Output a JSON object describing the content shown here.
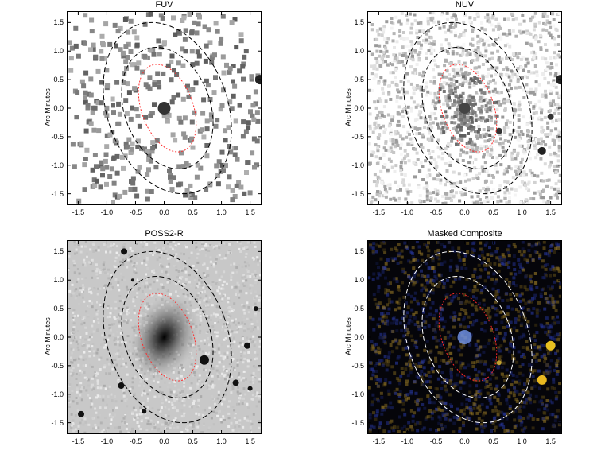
{
  "figure": {
    "axis_label": "Arc Minutes",
    "x_ticks": [
      "-1.5",
      "-1.0",
      "-0.5",
      "0.0",
      "0.5",
      "1.0",
      "1.5"
    ],
    "y_ticks": [
      "1.5",
      "1.0",
      "0.5",
      "0.0",
      "-0.5",
      "-1.0",
      "-1.5"
    ],
    "axis_range": [
      -1.7,
      1.7
    ],
    "overlay": {
      "inner_ellipse_color": "#ff2a2a",
      "outer_ellipse_color_light": "#000000",
      "outer_ellipse_color_dark": "#ffffff",
      "style": "dashed"
    }
  },
  "panels": [
    {
      "id": "fuv",
      "title": "FUV",
      "style": "sparse-mono"
    },
    {
      "id": "nuv",
      "title": "NUV",
      "style": "dense-mono"
    },
    {
      "id": "poss",
      "title": "POSS2-R",
      "style": "optical-gray"
    },
    {
      "id": "composite",
      "title": "Masked Composite",
      "style": "color-composite"
    }
  ]
}
